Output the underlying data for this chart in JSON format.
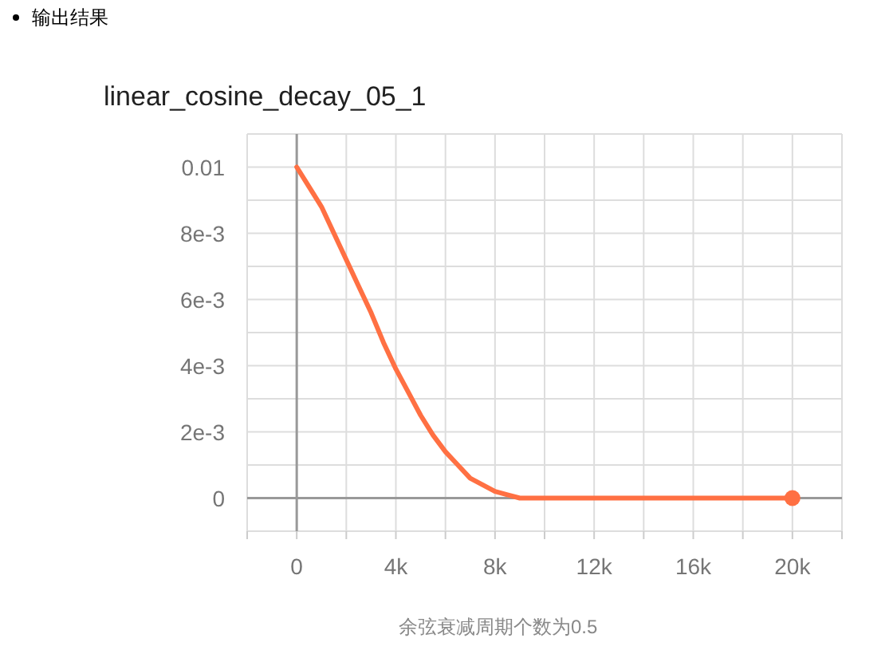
{
  "chart_data": {
    "type": "line",
    "title": "linear_cosine_decay_05_1",
    "annotations": [
      "输出结果",
      "余弦衰减周期个数为0.5"
    ],
    "series": [
      {
        "type": "line",
        "color": "#ff7043",
        "marker": "none",
        "line_style": "solid",
        "x": [
          0,
          500,
          1000,
          1500,
          2000,
          2500,
          3000,
          3500,
          4000,
          4500,
          5000,
          5500,
          6000,
          6500,
          7000,
          7500,
          8000,
          8500,
          9000,
          10000,
          20000
        ],
        "values": [
          0.01,
          0.0094,
          0.0088,
          0.008,
          0.0072,
          0.0064,
          0.0056,
          0.0047,
          0.0039,
          0.0032,
          0.0025,
          0.0019,
          0.0014,
          0.001,
          0.0006,
          0.0004,
          0.0002,
          0.0001,
          0.0,
          0.0,
          0.0
        ]
      },
      {
        "type": "scatter",
        "color": "#ff7043",
        "marker": "circle",
        "x": [
          20000
        ],
        "values": [
          0.0
        ]
      }
    ],
    "xlim": [
      -2000,
      22000
    ],
    "xticks": [
      {
        "value": -2000,
        "label": null
      },
      0,
      {
        "value": 2000,
        "label": null
      },
      {
        "value": 4000,
        "label": "4k"
      },
      {
        "value": 6000,
        "label": null
      },
      {
        "value": 8000,
        "label": "8k"
      },
      {
        "value": 10000,
        "label": null
      },
      {
        "value": 12000,
        "label": "12k"
      },
      {
        "value": 14000,
        "label": null
      },
      {
        "value": 16000,
        "label": "16k"
      },
      {
        "value": 18000,
        "label": null
      },
      {
        "value": 20000,
        "label": "20k"
      },
      {
        "value": 22000,
        "label": null
      }
    ],
    "ylim": [
      -0.001,
      0.011
    ],
    "yticks": [
      {
        "value": -0.001,
        "label": null
      },
      0,
      {
        "value": 0.001,
        "label": null
      },
      {
        "value": 0.002,
        "label": "2e-3"
      },
      {
        "value": 0.003,
        "label": null
      },
      {
        "value": 0.004,
        "label": "4e-3"
      },
      {
        "value": 0.005,
        "label": null
      },
      {
        "value": 0.006,
        "label": "6e-3"
      },
      {
        "value": 0.007,
        "label": null
      },
      {
        "value": 0.008,
        "label": "8e-3"
      },
      {
        "value": 0.009,
        "label": null
      },
      0.01,
      {
        "value": 0.011,
        "label": null
      }
    ],
    "grid": true
  }
}
